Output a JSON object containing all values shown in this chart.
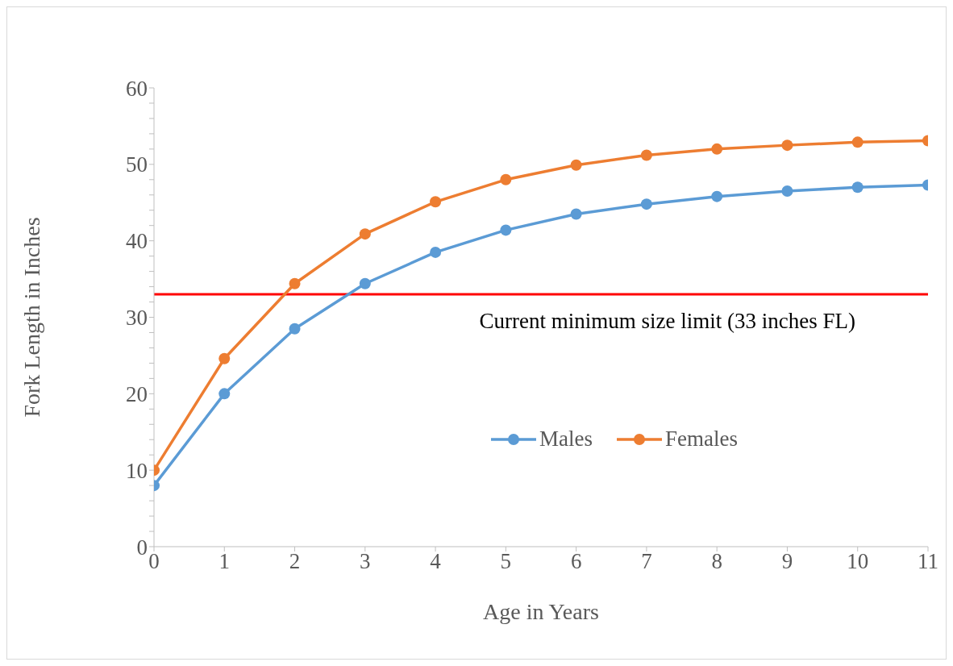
{
  "chart_data": {
    "type": "line",
    "xlabel": "Age in Years",
    "ylabel": "Fork Length in Inches",
    "x": [
      0,
      1,
      2,
      3,
      4,
      5,
      6,
      7,
      8,
      9,
      10,
      11
    ],
    "series": [
      {
        "name": "Males",
        "color": "#5b9bd5",
        "values": [
          8.0,
          20.0,
          28.5,
          34.4,
          38.5,
          41.4,
          43.5,
          44.8,
          45.8,
          46.5,
          47.0,
          47.3
        ]
      },
      {
        "name": "Females",
        "color": "#ed7d31",
        "values": [
          10.0,
          24.6,
          34.4,
          40.9,
          45.1,
          48.0,
          49.9,
          51.2,
          52.0,
          52.5,
          52.9,
          53.1
        ]
      }
    ],
    "xlim": [
      0,
      11
    ],
    "xticks": [
      0,
      1,
      2,
      3,
      4,
      5,
      6,
      7,
      8,
      9,
      10,
      11
    ],
    "ylim": [
      0,
      60
    ],
    "yticks": [
      0,
      {
        "value": 2,
        "label": null
      },
      {
        "value": 4,
        "label": null
      },
      {
        "value": 6,
        "label": null
      },
      {
        "value": 8,
        "label": null
      },
      10,
      {
        "value": 12,
        "label": null
      },
      {
        "value": 14,
        "label": null
      },
      {
        "value": 16,
        "label": null
      },
      {
        "value": 18,
        "label": null
      },
      20,
      {
        "value": 22,
        "label": null
      },
      {
        "value": 24,
        "label": null
      },
      {
        "value": 26,
        "label": null
      },
      {
        "value": 28,
        "label": null
      },
      30,
      {
        "value": 32,
        "label": null
      },
      {
        "value": 34,
        "label": null
      },
      {
        "value": 36,
        "label": null
      },
      {
        "value": 38,
        "label": null
      },
      40,
      {
        "value": 42,
        "label": null
      },
      {
        "value": 44,
        "label": null
      },
      {
        "value": 46,
        "label": null
      },
      {
        "value": 48,
        "label": null
      },
      50,
      {
        "value": 52,
        "label": null
      },
      {
        "value": 54,
        "label": null
      },
      {
        "value": 56,
        "label": null
      },
      {
        "value": 58,
        "label": null
      },
      60
    ],
    "ref_lines": [
      {
        "axis": "y",
        "value": 33,
        "label": "Current minimum size limit (33 inches FL)",
        "color": "#ff0000",
        "line_style": "solid"
      }
    ],
    "grid": false,
    "legend": "center",
    "marker": "circle",
    "line_style": "solid"
  }
}
